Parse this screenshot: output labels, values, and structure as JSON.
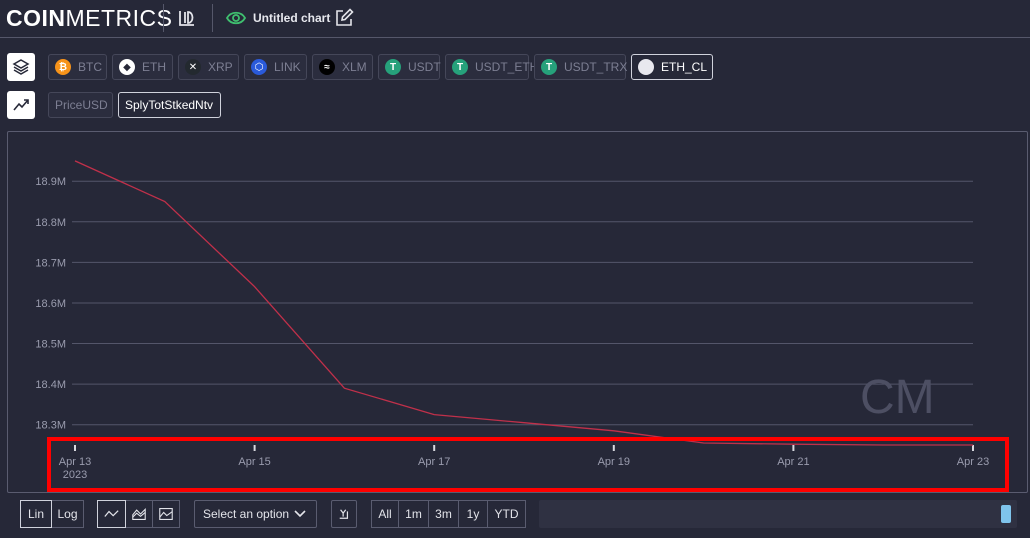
{
  "header": {
    "logo_bold": "COIN",
    "logo_light": "METRICS",
    "chart_title": "Untitled chart"
  },
  "assets": [
    {
      "label": "BTC",
      "color": "#f7931a",
      "glyph": "₿",
      "active": false
    },
    {
      "label": "ETH",
      "color": "#ffffff",
      "glyph": "◆",
      "active": false
    },
    {
      "label": "XRP",
      "color": "#23292f",
      "glyph": "✕",
      "active": false
    },
    {
      "label": "LINK",
      "color": "#2a5ada",
      "glyph": "⬡",
      "active": false
    },
    {
      "label": "XLM",
      "color": "#000000",
      "glyph": "≈",
      "active": false
    },
    {
      "label": "USDT",
      "color": "#26a17b",
      "glyph": "T",
      "active": false
    },
    {
      "label": "USDT_ETH",
      "color": "#26a17b",
      "glyph": "T",
      "active": false
    },
    {
      "label": "USDT_TRX",
      "color": "#26a17b",
      "glyph": "T",
      "active": false
    },
    {
      "label": "ETH_CL",
      "color": "#e8e8ee",
      "glyph": "",
      "active": true
    }
  ],
  "metrics": [
    {
      "label": "PriceUSD",
      "active": false
    },
    {
      "label": "SplyTotStkedNtv",
      "active": true
    }
  ],
  "chart_data": {
    "type": "line",
    "series": [
      {
        "color": "#c0304a",
        "x": [
          "2023-04-13",
          "2023-04-14",
          "2023-04-15",
          "2023-04-16",
          "2023-04-17",
          "2023-04-18",
          "2023-04-19",
          "2023-04-20",
          "2023-04-21",
          "2023-04-22",
          "2023-04-23"
        ],
        "values": [
          18950000,
          18850000,
          18640000,
          18390000,
          18325000,
          18305000,
          18285000,
          18255000,
          18252000,
          18250000,
          18250000
        ]
      }
    ],
    "y_ticks": [
      "18.3M",
      "18.4M",
      "18.5M",
      "18.6M",
      "18.7M",
      "18.8M",
      "18.9M"
    ],
    "y_tick_values": [
      18300000,
      18400000,
      18500000,
      18600000,
      18700000,
      18800000,
      18900000
    ],
    "ylim": [
      18250000,
      18940000
    ],
    "x_ticks": [
      "Apr 13",
      "Apr 15",
      "Apr 17",
      "Apr 19",
      "Apr 21",
      "Apr 23"
    ],
    "x_tick_dates": [
      "2023-04-13",
      "2023-04-15",
      "2023-04-17",
      "2023-04-19",
      "2023-04-21",
      "2023-04-23"
    ],
    "x_year_label": "2023",
    "grid": true,
    "watermark": "CM"
  },
  "controls": {
    "scale": [
      "Lin",
      "Log"
    ],
    "active_scale": "Lin",
    "select_placeholder": "Select an option",
    "ranges": [
      "All",
      "1m",
      "3m",
      "1y",
      "YTD"
    ]
  },
  "icons": {
    "layers": "layers-icon",
    "trend": "trend-icon",
    "edit": "edit-icon",
    "eye": "eye-icon",
    "docs": "docs-icon"
  }
}
